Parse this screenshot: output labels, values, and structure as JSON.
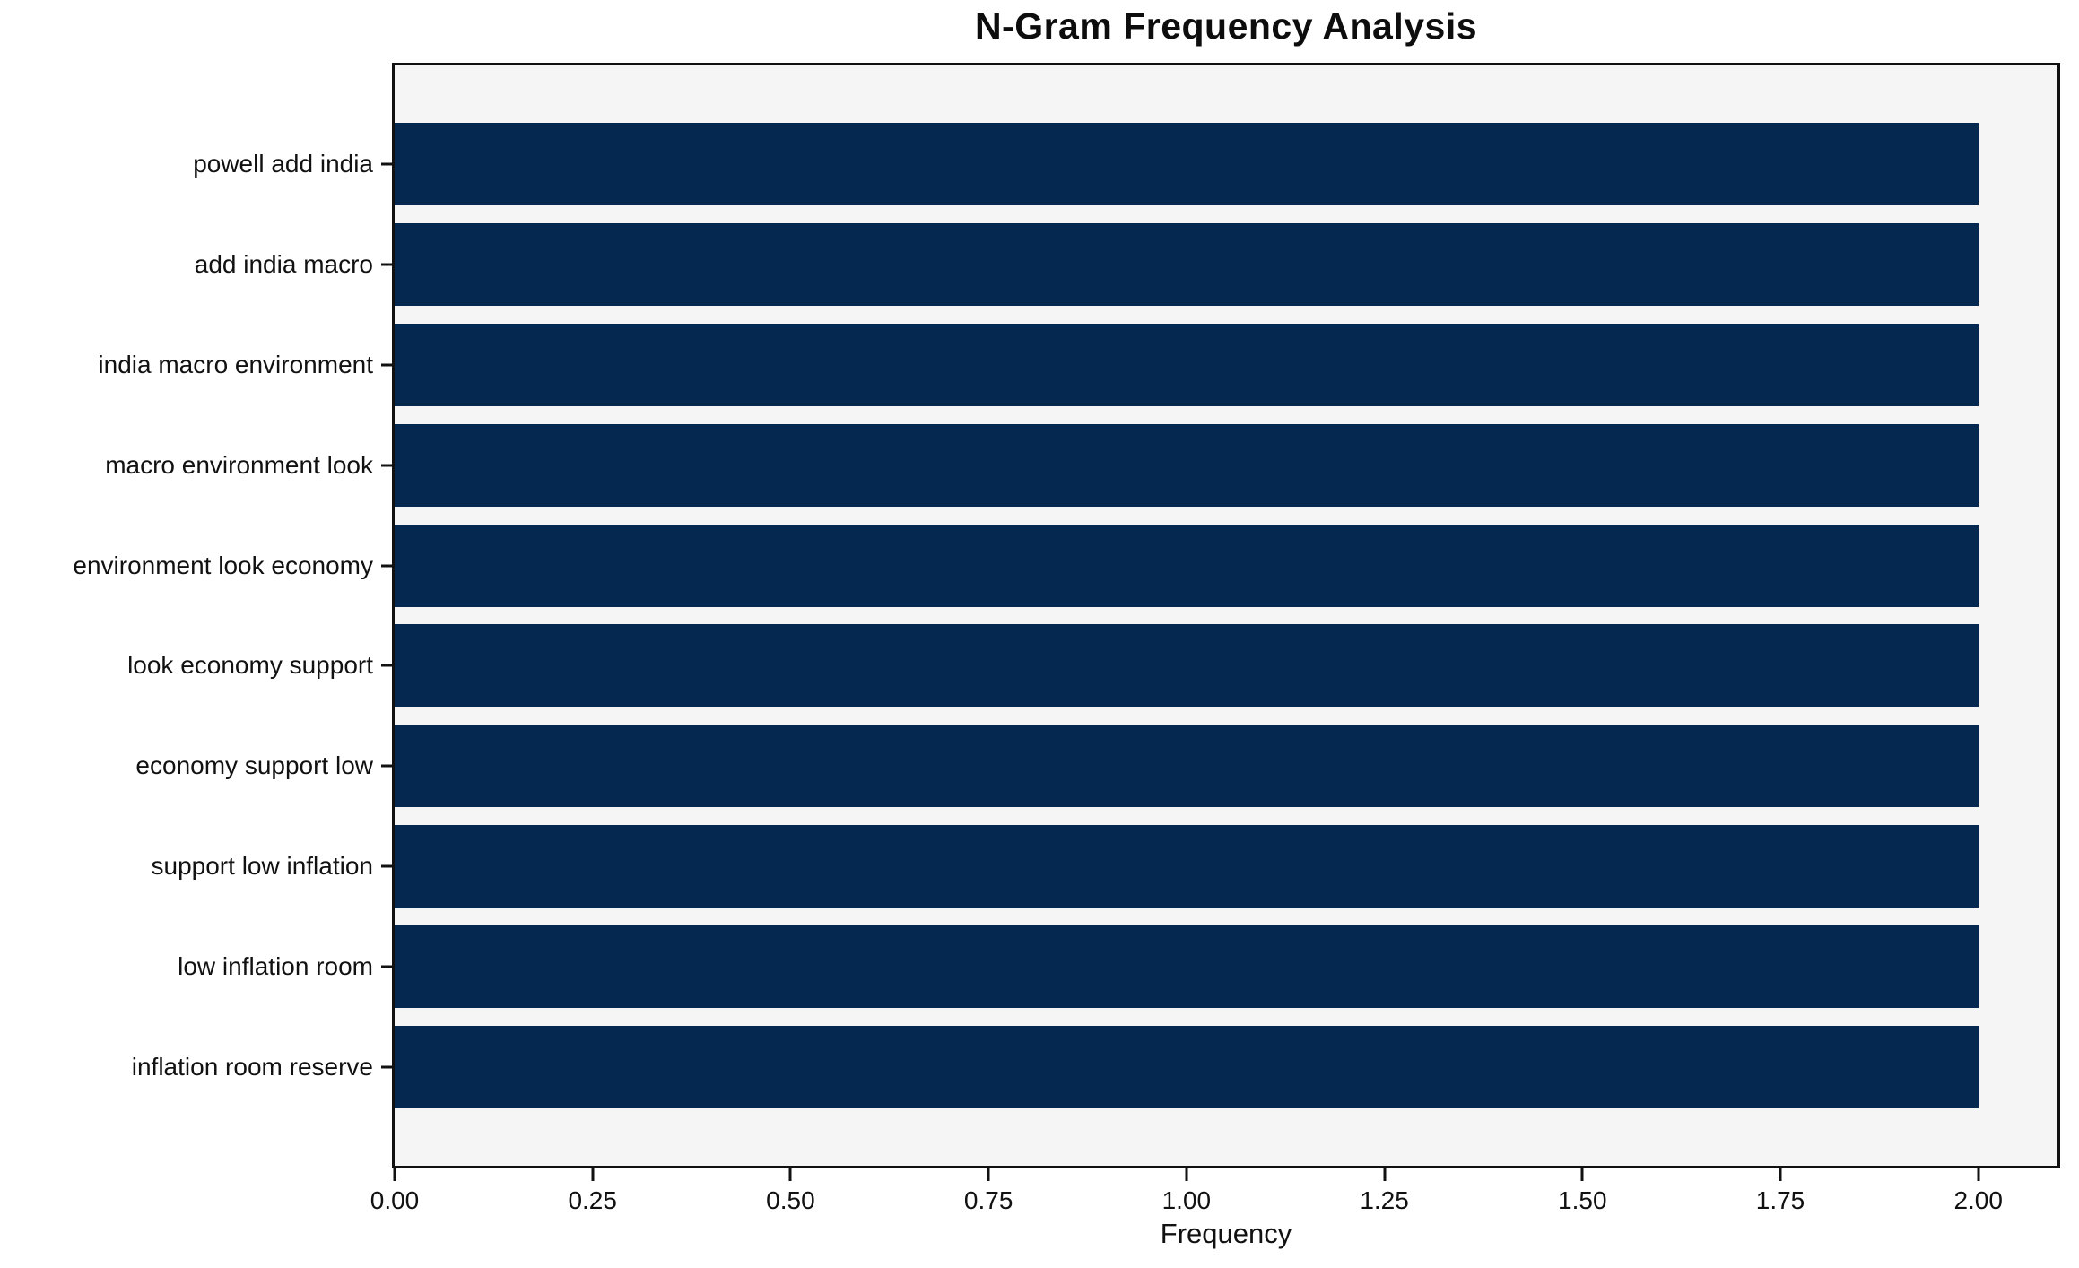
{
  "chart_data": {
    "type": "bar",
    "orientation": "horizontal",
    "title": "N-Gram Frequency Analysis",
    "xlabel": "Frequency",
    "ylabel": "",
    "categories": [
      "powell add india",
      "add india macro",
      "india macro environment",
      "macro environment look",
      "environment look economy",
      "look economy support",
      "economy support low",
      "support low inflation",
      "low inflation room",
      "inflation room reserve"
    ],
    "values": [
      2,
      2,
      2,
      2,
      2,
      2,
      2,
      2,
      2,
      2
    ],
    "xlim": [
      0,
      2.1
    ],
    "xticks": [
      "0.00",
      "0.25",
      "0.50",
      "0.75",
      "1.00",
      "1.25",
      "1.50",
      "1.75",
      "2.00"
    ],
    "xtick_values": [
      0,
      0.25,
      0.5,
      0.75,
      1.0,
      1.25,
      1.5,
      1.75,
      2.0
    ],
    "grid": false,
    "legend_position": "none",
    "colors": {
      "bar": "#04284f",
      "plot_background": "#f5f5f5",
      "figure_background": "#ffffff",
      "axis": "#111111",
      "text": "#111111"
    }
  }
}
